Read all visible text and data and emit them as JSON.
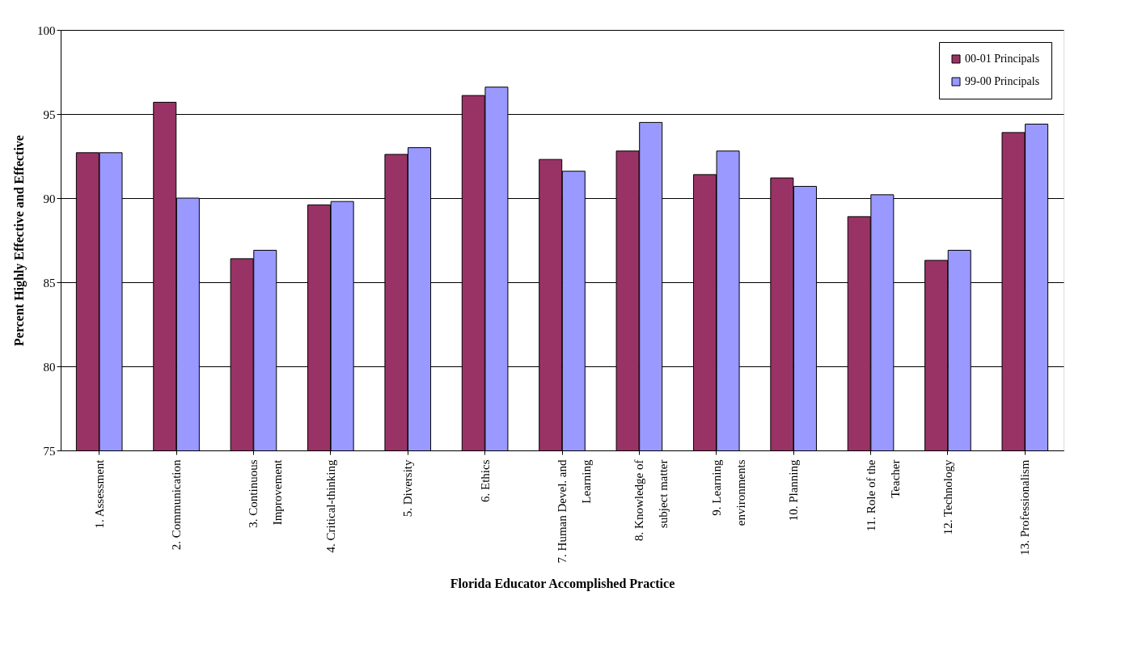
{
  "chart_data": {
    "type": "bar",
    "xlabel": "Florida Educator Accomplished Practice",
    "ylabel": "Percent Highly Effective and Effective",
    "categories": [
      "1. Assessment",
      "2. Communication",
      "3. Continuous\nImprovement",
      "4. Critical-thinking",
      "5. Diversity",
      "6. Ethics",
      "7. Human Devel. and\nLearning",
      "8. Knowledge of\nsubject matter",
      "9. Learning\nenvironments",
      "10. Planning",
      "11. Role of the\nTeacher",
      "12. Technology",
      "13. Professionalism"
    ],
    "series": [
      {
        "name": "00-01 Principals",
        "color": "#993366",
        "values": [
          92.7,
          95.7,
          86.4,
          89.6,
          92.6,
          96.1,
          92.3,
          92.8,
          91.4,
          91.2,
          88.9,
          86.3,
          93.9
        ]
      },
      {
        "name": "99-00 Principals",
        "color": "#9999ff",
        "values": [
          92.7,
          90.0,
          86.9,
          89.8,
          93.0,
          96.6,
          91.6,
          94.5,
          92.8,
          90.7,
          90.2,
          86.9,
          94.4
        ]
      }
    ],
    "ylim": [
      75,
      100
    ],
    "yticks": [
      75,
      80,
      85,
      90,
      95,
      100
    ],
    "grid": "y",
    "legend": "top right"
  }
}
